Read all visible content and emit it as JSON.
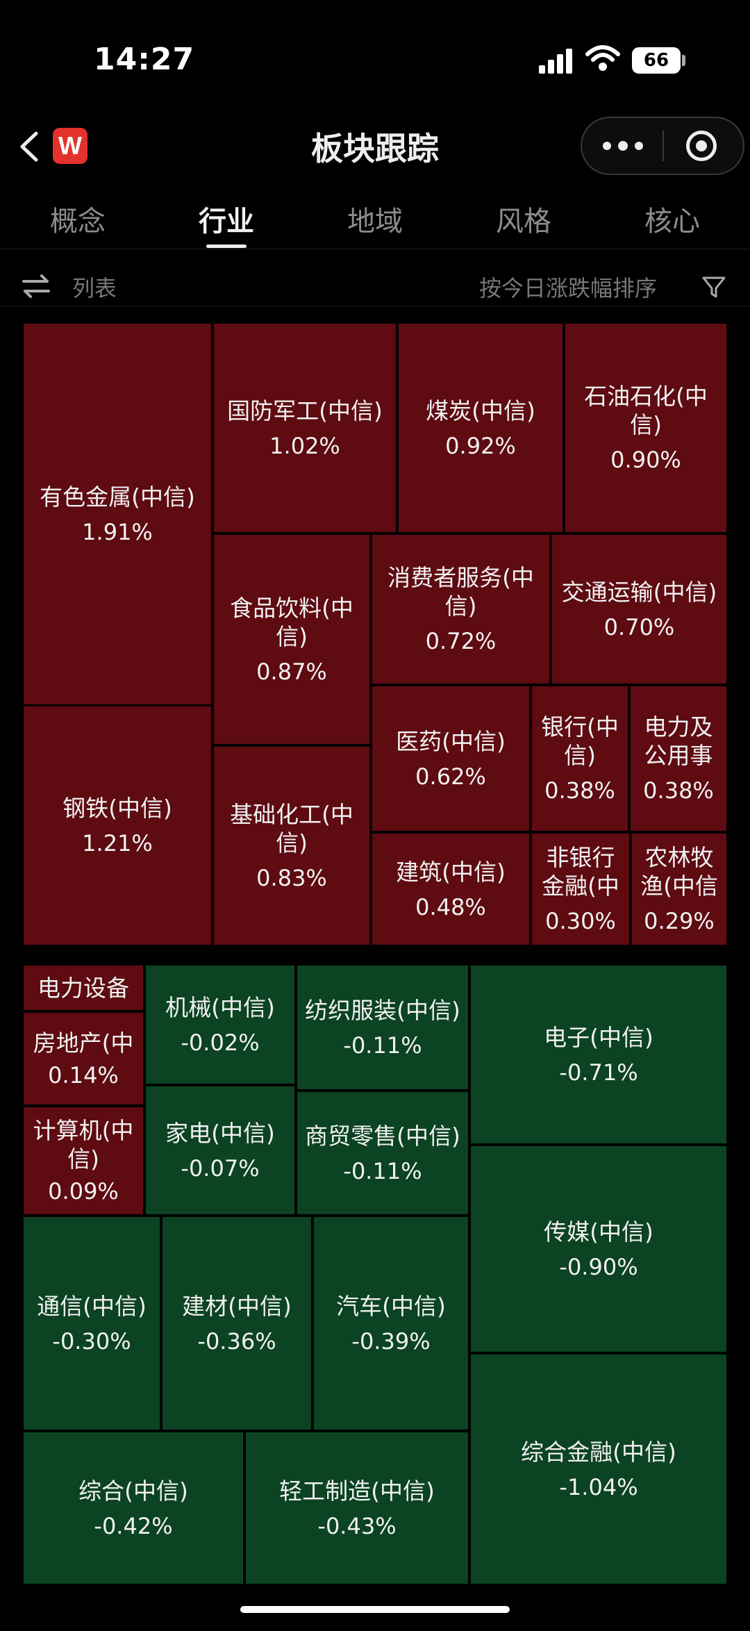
{
  "status_bar": {
    "time": "14:27",
    "battery": "66"
  },
  "nav": {
    "title": "板块跟踪",
    "logo_text": "W"
  },
  "tabs": [
    {
      "label": "概念",
      "active": false
    },
    {
      "label": "行业",
      "active": true
    },
    {
      "label": "地域",
      "active": false
    },
    {
      "label": "风格",
      "active": false
    },
    {
      "label": "核心",
      "active": false
    }
  ],
  "toolbar": {
    "view_label": "列表",
    "sort_label": "按今日涨跌幅排序"
  },
  "colors": {
    "up": "#5e0b12",
    "down": "#0c4323",
    "background": "#000000"
  },
  "treemap": {
    "gainers": [
      {
        "name": "有色金属(中信)",
        "change": "1.91%"
      },
      {
        "name": "钢铁(中信)",
        "change": "1.21%"
      },
      {
        "name": "国防军工(中信)",
        "change": "1.02%"
      },
      {
        "name": "煤炭(中信)",
        "change": "0.92%"
      },
      {
        "name": "石油石化(中信)",
        "change": "0.90%"
      },
      {
        "name": "食品饮料(中信)",
        "change": "0.87%"
      },
      {
        "name": "消费者服务(中信)",
        "change": "0.72%"
      },
      {
        "name": "交通运输(中信)",
        "change": "0.70%"
      },
      {
        "name": "基础化工(中信)",
        "change": "0.83%"
      },
      {
        "name": "医药(中信)",
        "change": "0.62%"
      },
      {
        "name": "银行(中信)",
        "change": "0.38%"
      },
      {
        "name": "电力及公用事",
        "change": "0.38%"
      },
      {
        "name": "建筑(中信)",
        "change": "0.48%"
      },
      {
        "name": "非银行金融(中",
        "change": "0.30%"
      },
      {
        "name": "农林牧渔(中信",
        "change": "0.29%"
      }
    ],
    "mixed": [
      {
        "name": "电力设备",
        "change": "",
        "dir": "up"
      },
      {
        "name": "房地产(中",
        "change": "0.14%",
        "dir": "up"
      },
      {
        "name": "计算机(中信)",
        "change": "0.09%",
        "dir": "up"
      },
      {
        "name": "机械(中信)",
        "change": "-0.02%",
        "dir": "down"
      },
      {
        "name": "家电(中信)",
        "change": "-0.07%",
        "dir": "down"
      },
      {
        "name": "纺织服装(中信)",
        "change": "-0.11%",
        "dir": "down"
      },
      {
        "name": "商贸零售(中信)",
        "change": "-0.11%",
        "dir": "down"
      },
      {
        "name": "电子(中信)",
        "change": "-0.71%",
        "dir": "down"
      },
      {
        "name": "传媒(中信)",
        "change": "-0.90%",
        "dir": "down"
      },
      {
        "name": "通信(中信)",
        "change": "-0.30%",
        "dir": "down"
      },
      {
        "name": "建材(中信)",
        "change": "-0.36%",
        "dir": "down"
      },
      {
        "name": "汽车(中信)",
        "change": "-0.39%",
        "dir": "down"
      },
      {
        "name": "综合金融(中信)",
        "change": "-1.04%",
        "dir": "down"
      },
      {
        "name": "综合(中信)",
        "change": "-0.42%",
        "dir": "down"
      },
      {
        "name": "轻工制造(中信)",
        "change": "-0.43%",
        "dir": "down"
      }
    ]
  }
}
